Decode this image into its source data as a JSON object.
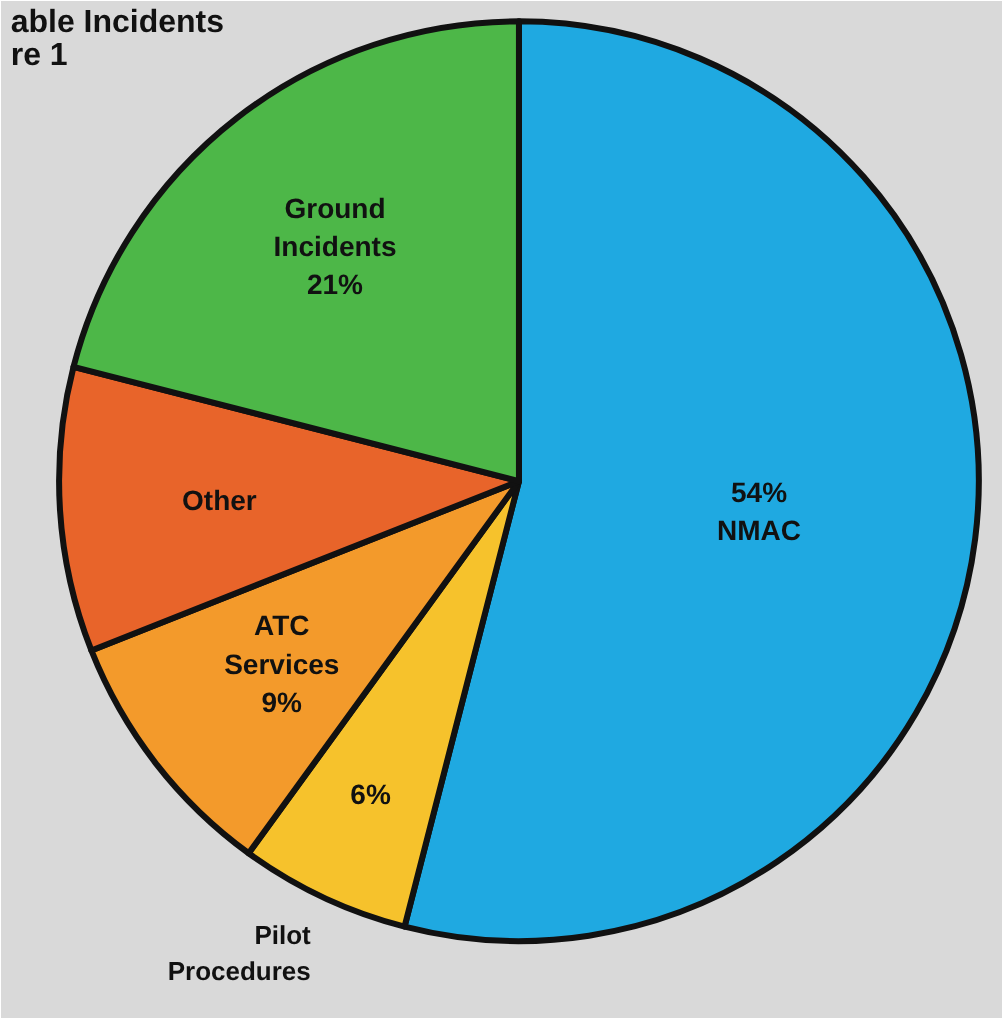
{
  "chart_data": {
    "type": "pie",
    "title": "able Incidents",
    "subtitle": "re 1",
    "categories": [
      "NMAC",
      "Pilot Procedures",
      "ATC Services",
      "Other",
      "Ground Incidents"
    ],
    "values": [
      54,
      6,
      9,
      10,
      21
    ],
    "value_labels": [
      "54%",
      "6%",
      "9%",
      null,
      "21%"
    ],
    "colors": [
      "#1fa9e1",
      "#f6c22c",
      "#f39a2b",
      "#e8642a",
      "#4db748"
    ]
  }
}
